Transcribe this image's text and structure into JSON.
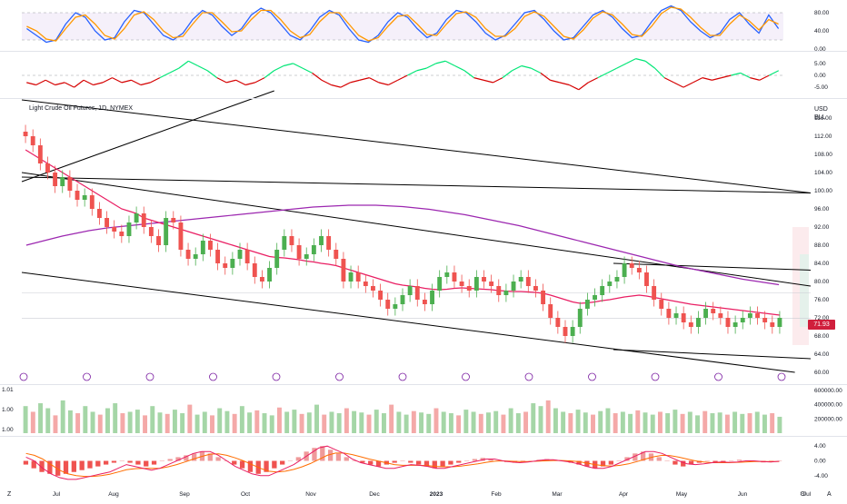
{
  "title": "Light Crude Oil Futures, 1D, NYMEX",
  "currency": "USD",
  "unit": "BLL",
  "last_price": "71.93",
  "left_label": "Z",
  "corner_labels": {
    "bottom_right_a": "⚙",
    "bottom_right_b": "A"
  },
  "colors": {
    "up": "#26a69a",
    "up_bar": "#4caf50",
    "down": "#ef5350",
    "ma_fast": "#e91e63",
    "ma_slow": "#9c27b0",
    "stoch_k": "#2962ff",
    "stoch_d": "#ff9800",
    "osc_up": "#00e676",
    "osc_down": "#d50000",
    "macd_line": "#2962ff",
    "signal_line": "#ff6d00",
    "trendline": "#000000",
    "badge": "#d01f3c"
  },
  "chart_data": [
    {
      "pane": "stochastic",
      "type": "line",
      "axis_ticks": [
        "80.00",
        "40.00",
        "0.00"
      ],
      "ylim": [
        0,
        100
      ],
      "guide_levels": [
        80,
        20
      ],
      "series": [
        {
          "color_key": "stoch_k",
          "values": [
            45,
            30,
            15,
            20,
            55,
            80,
            70,
            40,
            20,
            25,
            60,
            85,
            80,
            55,
            30,
            20,
            35,
            65,
            85,
            75,
            50,
            30,
            45,
            75,
            90,
            80,
            55,
            30,
            20,
            40,
            70,
            85,
            75,
            45,
            20,
            15,
            30,
            60,
            80,
            70,
            45,
            25,
            35,
            65,
            85,
            80,
            60,
            35,
            20,
            30,
            55,
            80,
            85,
            65,
            40,
            20,
            25,
            50,
            75,
            85,
            70,
            45,
            25,
            30,
            60,
            85,
            95,
            85,
            60,
            40,
            25,
            35,
            65,
            80,
            55,
            35,
            75,
            45
          ]
        },
        {
          "color_key": "stoch_d",
          "values": [
            50,
            40,
            22,
            18,
            45,
            70,
            75,
            55,
            30,
            22,
            45,
            75,
            82,
            65,
            40,
            25,
            28,
            55,
            80,
            80,
            60,
            38,
            40,
            65,
            85,
            85,
            65,
            40,
            25,
            32,
            60,
            80,
            80,
            55,
            30,
            18,
            25,
            50,
            72,
            75,
            55,
            32,
            30,
            55,
            78,
            82,
            70,
            45,
            28,
            28,
            45,
            72,
            82,
            72,
            50,
            28,
            22,
            42,
            68,
            82,
            75,
            55,
            32,
            28,
            50,
            78,
            92,
            88,
            70,
            48,
            30,
            30,
            55,
            75,
            62,
            42,
            65,
            55
          ]
        }
      ]
    },
    {
      "pane": "oscillator",
      "type": "line",
      "axis_ticks": [
        "5.00",
        "0.00",
        "-5.00"
      ],
      "ylim": [
        -8,
        8
      ],
      "zero_line": 0,
      "values": [
        -3,
        -4,
        -2,
        -4,
        -3,
        -5,
        -2,
        -4,
        -3,
        -1,
        -3,
        -2,
        -4,
        -3,
        -1,
        1,
        3,
        6,
        4,
        2,
        -1,
        -3,
        -2,
        -4,
        -3,
        -1,
        2,
        4,
        5,
        3,
        1,
        -2,
        -4,
        -5,
        -3,
        -2,
        -1,
        -3,
        -4,
        -2,
        0,
        2,
        3,
        5,
        6,
        4,
        2,
        -1,
        -2,
        -3,
        -1,
        2,
        4,
        3,
        1,
        -2,
        -3,
        -4,
        -6,
        -3,
        -1,
        1,
        3,
        5,
        7,
        6,
        3,
        -1,
        -3,
        -5,
        -3,
        -1,
        -2,
        -1,
        0,
        1,
        -1,
        -2,
        0,
        2
      ]
    },
    {
      "pane": "price",
      "type": "candlestick",
      "title": "Light Crude Oil Futures, 1D, NYMEX",
      "y_ticks": [
        "116.00",
        "112.00",
        "108.00",
        "104.00",
        "100.00",
        "96.00",
        "92.00",
        "88.00",
        "84.00",
        "80.00",
        "76.00",
        "72.00",
        "68.00",
        "64.00",
        "60.00"
      ],
      "ylim": [
        58,
        120
      ],
      "x_ticks": [
        "Jul",
        "Aug",
        "Sep",
        "Oct",
        "Nov",
        "Dec",
        "2023",
        "Feb",
        "Mar",
        "Apr",
        "May",
        "Jun",
        "Jul"
      ],
      "last_value": 71.93,
      "close": [
        112,
        110,
        106,
        104,
        101,
        103,
        100,
        98,
        99,
        96,
        94,
        92,
        91,
        90,
        93,
        95,
        92,
        90,
        88,
        94,
        93,
        87,
        85,
        86,
        89,
        87,
        84,
        83,
        85,
        87,
        84,
        81,
        80,
        83,
        87,
        90,
        88,
        85,
        86,
        88,
        90,
        87,
        85,
        80,
        82,
        80,
        79,
        78,
        76,
        74,
        75,
        77,
        79,
        76,
        75,
        78,
        81,
        82,
        80,
        79,
        78,
        81,
        80,
        79,
        77,
        78,
        80,
        81,
        79,
        78,
        75,
        72,
        70,
        68,
        70,
        74,
        76,
        77,
        79,
        80,
        81,
        84,
        83,
        82,
        79,
        76,
        74,
        72,
        73,
        71,
        70,
        72,
        74,
        73,
        72,
        70,
        71,
        72,
        73,
        72,
        71,
        70,
        72
      ],
      "ma_fast": [
        109,
        108,
        107,
        106,
        105,
        104,
        103,
        102,
        101,
        100,
        99,
        98,
        97,
        96,
        95.5,
        95,
        94,
        93.5,
        93,
        92.5,
        92,
        91.5,
        91,
        90.5,
        90,
        89.5,
        89,
        88.5,
        88,
        87.5,
        87,
        86.5,
        86,
        85.5,
        85.3,
        85.2,
        85,
        84.8,
        84.5,
        84.3,
        84,
        83.8,
        83.5,
        83,
        82.5,
        82,
        81.5,
        81,
        80.5,
        80,
        79.5,
        79.2,
        79,
        78.8,
        78.5,
        78.3,
        78.2,
        78.3,
        78.5,
        78.6,
        78.5,
        78.4,
        78.3,
        78.2,
        78,
        77.9,
        77.8,
        77.8,
        77.7,
        77.6,
        77.4,
        77,
        76.5,
        76,
        75.5,
        75.2,
        75.3,
        75.5,
        75.8,
        76,
        76.3,
        76.6,
        76.8,
        77,
        76.8,
        76.5,
        76.2,
        75.9,
        75.6,
        75.3,
        75,
        74.8,
        74.6,
        74.4,
        74.2,
        74,
        73.8,
        73.6,
        73.4,
        73.2,
        73,
        72.8,
        72.6
      ],
      "ma_slow": [
        88,
        88.5,
        89,
        89.5,
        90,
        90.4,
        90.8,
        91.2,
        91.5,
        91.8,
        92,
        92.2,
        92.4,
        92.6,
        92.8,
        93,
        93.2,
        93.4,
        93.6,
        93.8,
        94,
        94.2,
        94.4,
        94.6,
        94.8,
        95,
        95.2,
        95.4,
        95.6,
        95.8,
        96,
        96.2,
        96.4,
        96.5,
        96.6,
        96.7,
        96.8,
        96.8,
        96.8,
        96.8,
        96.7,
        96.6,
        96.5,
        96.3,
        96.1,
        95.9,
        95.6,
        95.3,
        95,
        94.7,
        94.3,
        93.9,
        93.5,
        93.1,
        92.7,
        92.3,
        91.8,
        91.3,
        90.8,
        90.3,
        89.8,
        89.3,
        88.8,
        88.3,
        87.8,
        87.3,
        86.8,
        86.3,
        85.8,
        85.3,
        84.8,
        84.3,
        83.8,
        83.3,
        82.9,
        82.5,
        82.1,
        81.7,
        81.3,
        80.9,
        80.5,
        80.2,
        79.9,
        79.6,
        79.3
      ]
    },
    {
      "pane": "volume",
      "type": "bar",
      "axis_ticks": [
        "600000.00",
        "400000.00",
        "200000.00"
      ],
      "left_ticks": [
        "1.01",
        "1.00",
        "1.00"
      ],
      "ylim": [
        0,
        650000
      ],
      "values": [
        380000,
        300000,
        420000,
        350000,
        250000,
        460000,
        320000,
        280000,
        380000,
        300000,
        260000,
        350000,
        420000,
        280000,
        300000,
        330000,
        250000,
        380000,
        290000,
        270000,
        330000,
        280000,
        400000,
        260000,
        300000,
        250000,
        350000,
        310000,
        270000,
        380000,
        290000,
        320000,
        280000,
        250000,
        360000,
        300000,
        330000,
        270000,
        290000,
        400000,
        260000,
        300000,
        280000,
        350000,
        310000,
        290000,
        260000,
        330000,
        280000,
        400000,
        300000,
        260000,
        310000,
        290000,
        270000,
        350000,
        300000,
        280000,
        250000,
        330000,
        300000,
        270000,
        290000,
        310000,
        260000,
        350000,
        280000,
        300000,
        420000,
        380000,
        460000,
        350000,
        300000,
        280000,
        330000,
        290000,
        260000,
        310000,
        350000,
        280000,
        300000,
        270000,
        320000,
        290000,
        260000,
        300000,
        280000,
        330000,
        270000,
        300000,
        250000,
        310000,
        280000,
        290000,
        260000,
        300000,
        270000,
        280000,
        300000,
        260000,
        280000,
        230000
      ]
    },
    {
      "pane": "macd",
      "type": "bar",
      "axis_ticks": [
        "4.00",
        "0.00",
        "-4.00"
      ],
      "ylim": [
        -6,
        6
      ],
      "histogram": [
        -1,
        -2,
        -3,
        -3.5,
        -4,
        -3.5,
        -3,
        -2.5,
        -2,
        -1.5,
        -1,
        -0.5,
        0,
        -0.5,
        -1,
        -1.5,
        -1,
        0,
        0.5,
        1,
        1.5,
        2,
        2.5,
        2,
        1,
        0,
        -1,
        -2,
        -3,
        -3.5,
        -3,
        -2,
        -1,
        0,
        1,
        2.5,
        3.5,
        4,
        3,
        2,
        1,
        0,
        -0.5,
        -1,
        -1.5,
        -1,
        -0.5,
        0,
        -0.5,
        -1,
        -1.5,
        -2,
        -1.5,
        -1,
        -0.5,
        0,
        0.5,
        0.8,
        0.5,
        0,
        -0.3,
        -0.5,
        -0.3,
        0,
        0.3,
        0.5,
        0.3,
        0,
        -0.5,
        -1,
        -1.5,
        -2,
        -1.5,
        -1,
        0,
        1,
        2,
        2.5,
        2,
        1,
        0,
        -1,
        -1.5,
        -1,
        -0.5,
        0,
        -0.5,
        -0.3,
        0,
        0.3,
        0,
        -0.2,
        -0.4,
        -0.2,
        0
      ],
      "macd_line": [
        1,
        0,
        -2,
        -3.5,
        -4.5,
        -5,
        -5,
        -4.5,
        -4,
        -3.5,
        -3,
        -2,
        -1,
        -1.5,
        -2,
        -2.5,
        -2,
        -1,
        0,
        1,
        2,
        2.5,
        2.5,
        1.5,
        0,
        -1.5,
        -2.5,
        -3.5,
        -4,
        -4,
        -3,
        -2,
        -1,
        0.5,
        2,
        3.5,
        4,
        3,
        2,
        0.5,
        -0.5,
        -1,
        -1.5,
        -2,
        -2,
        -1.5,
        -1,
        -1.2,
        -1.5,
        -2,
        -2,
        -1.5,
        -1,
        -0.5,
        0,
        0.5,
        0.5,
        0,
        -0.3,
        -0.5,
        -0.3,
        0,
        0.3,
        0.3,
        0,
        -0.3,
        -0.8,
        -1.5,
        -2,
        -2,
        -1.5,
        -0.5,
        0.5,
        1.5,
        2.5,
        2.5,
        2,
        1,
        0,
        -0.8,
        -1,
        -0.8,
        -0.5,
        -0.3,
        -0.4,
        -0.3,
        0,
        0,
        -0.2,
        -0.3,
        -0.1
      ],
      "signal_line": [
        2,
        1.5,
        0.5,
        -1,
        -2.5,
        -3.5,
        -4,
        -4.2,
        -4.2,
        -4,
        -3.6,
        -3,
        -2.4,
        -2.1,
        -2,
        -2,
        -2,
        -1.6,
        -1,
        -0.3,
        0.5,
        1.2,
        1.8,
        1.9,
        1.5,
        0.8,
        0,
        -1,
        -2,
        -2.8,
        -3,
        -2.8,
        -2.3,
        -1.6,
        -0.7,
        0.4,
        1.5,
        2.1,
        2.1,
        1.7,
        1.1,
        0.5,
        0,
        -0.5,
        -1,
        -1.2,
        -1.2,
        -1.2,
        -1.3,
        -1.5,
        -1.6,
        -1.6,
        -1.4,
        -1.1,
        -0.8,
        -0.4,
        -0.1,
        0,
        -0.1,
        -0.2,
        -0.2,
        -0.1,
        0,
        0.1,
        0.1,
        0,
        -0.2,
        -0.6,
        -1,
        -1.3,
        -1.4,
        -1.2,
        -0.8,
        -0.2,
        0.5,
        1.1,
        1.5,
        1.4,
        1,
        0.5,
        0,
        -0.3,
        -0.5,
        -0.5,
        -0.5,
        -0.4,
        -0.3,
        -0.2,
        -0.2,
        -0.2,
        -0.2
      ]
    }
  ]
}
